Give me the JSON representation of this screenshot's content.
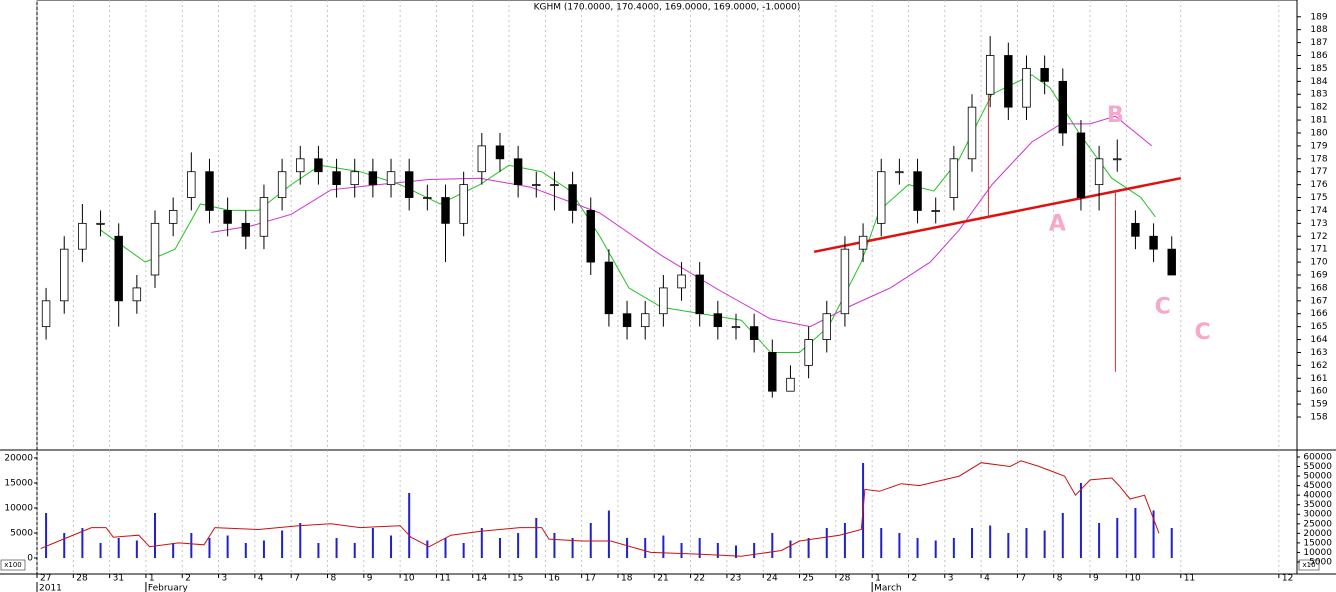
{
  "chart_data": [
    {
      "type": "candlestick",
      "title": "KGHM (170.0000, 170.4000, 169.0000, 169.0000, -1.0000)",
      "xlim": [
        0,
        34.7
      ],
      "ylim": [
        155.6,
        190.3
      ],
      "yticks": [
        158,
        159,
        160,
        161,
        162,
        163,
        164,
        165,
        166,
        167,
        168,
        169,
        170,
        171,
        172,
        173,
        174,
        175,
        176,
        177,
        178,
        179,
        180,
        181,
        182,
        183,
        184,
        185,
        186,
        187,
        188,
        189
      ],
      "up_color": "#ffffff",
      "down_color": "#000000",
      "x": [
        0.25,
        0.75,
        1.25,
        1.75,
        2.25,
        2.75,
        3.25,
        3.75,
        4.25,
        4.75,
        5.25,
        5.75,
        6.25,
        6.75,
        7.25,
        7.75,
        8.25,
        8.75,
        9.25,
        9.75,
        10.25,
        10.75,
        11.25,
        11.75,
        12.25,
        12.75,
        13.25,
        13.75,
        14.25,
        14.75,
        15.25,
        15.75,
        16.25,
        16.75,
        17.25,
        17.75,
        18.25,
        18.75,
        19.25,
        19.75,
        20.25,
        20.75,
        21.25,
        21.75,
        22.25,
        22.75,
        23.25,
        23.75,
        24.25,
        24.75,
        25.25,
        25.75,
        26.25,
        26.75,
        27.25,
        27.75,
        28.25,
        28.75,
        29.25,
        29.75,
        30.25,
        30.75,
        31.25
      ],
      "open": [
        165,
        167,
        171,
        173,
        172,
        167,
        169,
        173,
        175,
        177,
        174,
        173,
        172,
        175,
        177,
        178,
        177,
        176,
        177,
        176,
        177,
        175,
        175,
        173,
        177,
        179,
        178,
        176,
        176,
        176,
        174,
        170,
        166,
        165,
        166,
        168,
        169,
        166,
        165,
        165,
        163,
        160,
        162,
        164,
        166,
        171,
        173,
        177,
        177,
        174,
        175,
        178,
        183,
        186,
        182,
        185,
        184,
        180,
        176,
        178,
        173,
        172,
        171
      ],
      "high": [
        168,
        172,
        174.5,
        174,
        173,
        169,
        174,
        175,
        178.5,
        178,
        175,
        174,
        176,
        178,
        179,
        179,
        178,
        178,
        178,
        178,
        178,
        176,
        176,
        177,
        180,
        180,
        179,
        177,
        177,
        177,
        175,
        171,
        167,
        167,
        169,
        170,
        170,
        167,
        166,
        166,
        164,
        162,
        165,
        167,
        172,
        173,
        178,
        178,
        178,
        175,
        179,
        183,
        187.5,
        187,
        186,
        186,
        185,
        181,
        179,
        179.5,
        174,
        173,
        172
      ],
      "low": [
        164,
        166,
        170,
        172,
        165,
        166,
        168,
        172,
        174,
        173,
        172,
        171,
        171,
        174,
        176,
        176,
        175,
        175,
        175,
        175,
        174,
        174,
        170,
        172,
        176,
        177,
        175,
        175,
        174,
        173,
        169,
        165,
        164,
        164,
        165,
        167,
        165,
        164,
        164,
        163,
        159.5,
        160,
        161,
        163,
        165,
        170,
        172,
        176,
        173,
        173,
        174,
        177,
        182,
        181,
        181,
        183,
        179,
        174,
        174,
        177,
        171,
        170,
        169
      ],
      "close": [
        167,
        171,
        173,
        173,
        167,
        168,
        173,
        174,
        177,
        174,
        173,
        172,
        175,
        177,
        178,
        177,
        176,
        177,
        176,
        177,
        175,
        175,
        173,
        176,
        179,
        178,
        176,
        176,
        176,
        174,
        170,
        166,
        165,
        166,
        168,
        169,
        166,
        165,
        165,
        164,
        160,
        161,
        164,
        166,
        171,
        172,
        177,
        177,
        174,
        174,
        178,
        182,
        186,
        182,
        185,
        184,
        180,
        175,
        178,
        178,
        172,
        171,
        169
      ],
      "lines": [
        {
          "color": "#22c322",
          "width": 1,
          "x": [
            1.74,
            2.98,
            3.8,
            4.5,
            5.3,
            6.1,
            7.0,
            7.8,
            8.9,
            10.0,
            11.1,
            12.2,
            13.0,
            13.9,
            14.7,
            15.5,
            16.3,
            17.2,
            18.3,
            19.4,
            20.2,
            21.0,
            21.8,
            22.7,
            23.2,
            24.0,
            24.7,
            25.4,
            26.3,
            27.4,
            27.9,
            28.7,
            29.6,
            30.4,
            30.8
          ],
          "values": [
            172.5,
            170,
            171,
            174.5,
            174,
            174,
            176,
            177.5,
            177,
            176,
            174.5,
            176,
            177.5,
            177,
            175.5,
            172,
            168,
            166.5,
            166,
            165.5,
            163,
            163,
            165,
            170,
            174,
            176,
            175.5,
            178,
            183,
            184.5,
            183.5,
            180,
            176.5,
            175,
            173.5
          ]
        },
        {
          "color": "#d030d0",
          "width": 1,
          "x": [
            4.8,
            5.9,
            7.0,
            8.1,
            9.4,
            10.8,
            12.2,
            13.6,
            15.5,
            17.2,
            18.8,
            20.2,
            21.3,
            22.4,
            23.5,
            24.6,
            25.4,
            26.3,
            27.4,
            28.2,
            29.0,
            29.7,
            30.7
          ],
          "values": [
            172.3,
            172.8,
            173.7,
            175.6,
            176,
            176.4,
            176.5,
            175.8,
            173.8,
            170.5,
            167.8,
            165.6,
            165,
            166.6,
            168,
            170,
            172.5,
            176,
            179.3,
            180.7,
            180.7,
            181.3,
            179
          ]
        },
        {
          "color": "#e01010",
          "width": 2.5,
          "x": [
            21.4,
            31.5
          ],
          "values": [
            170.8,
            176.5
          ]
        },
        {
          "color": "#cc3333",
          "width": 1,
          "x": [
            26.2,
            26.2
          ],
          "values": [
            185.7,
            173.4
          ]
        },
        {
          "color": "#cc3333",
          "width": 1,
          "x": [
            29.7,
            29.7
          ],
          "values": [
            175.6,
            161.5
          ]
        }
      ],
      "annotation_color": "#f7a8c8",
      "annotations": [
        {
          "text": "A",
          "x": 28.1,
          "y": 172.9
        },
        {
          "text": "B",
          "x": 29.7,
          "y": 181.3
        },
        {
          "text": "C",
          "x": 31.0,
          "y": 166.5
        },
        {
          "text": "C",
          "x": 32.1,
          "y": 164.5
        }
      ]
    },
    {
      "type": "bar",
      "xlim": [
        0,
        34.7
      ],
      "ylim": [
        -2400,
        21200
      ],
      "y2lim": [
        800,
        62600
      ],
      "yticks": [
        0,
        5000,
        10000,
        15000,
        20000
      ],
      "y2ticks": [
        5000,
        10000,
        15000,
        20000,
        25000,
        30000,
        35000,
        40000,
        45000,
        50000,
        55000,
        60000
      ],
      "unit_label": "x100",
      "y2_unit_label": "x10",
      "grid": true,
      "xticks": [
        {
          "value": 0,
          "label": "27"
        },
        {
          "value": 1,
          "label": "28"
        },
        {
          "value": 2,
          "label": "31"
        },
        {
          "value": 3,
          "label": "1"
        },
        {
          "value": 4,
          "label": "2"
        },
        {
          "value": 5,
          "label": "3"
        },
        {
          "value": 6,
          "label": "4"
        },
        {
          "value": 7,
          "label": "7"
        },
        {
          "value": 8,
          "label": "8"
        },
        {
          "value": 9,
          "label": "9"
        },
        {
          "value": 10,
          "label": "10"
        },
        {
          "value": 11,
          "label": "11"
        },
        {
          "value": 12,
          "label": "14"
        },
        {
          "value": 13,
          "label": "15"
        },
        {
          "value": 14,
          "label": "16"
        },
        {
          "value": 15,
          "label": "17"
        },
        {
          "value": 16,
          "label": "18"
        },
        {
          "value": 17,
          "label": "21"
        },
        {
          "value": 18,
          "label": "22"
        },
        {
          "value": 19,
          "label": "23"
        },
        {
          "value": 20,
          "label": "24"
        },
        {
          "value": 21,
          "label": "25"
        },
        {
          "value": 22,
          "label": "28"
        },
        {
          "value": 23,
          "label": "1"
        },
        {
          "value": 24,
          "label": "2"
        },
        {
          "value": 25,
          "label": "3"
        },
        {
          "value": 26,
          "label": "4"
        },
        {
          "value": 27,
          "label": "7"
        },
        {
          "value": 28,
          "label": "8"
        },
        {
          "value": 29,
          "label": "9"
        },
        {
          "value": 30,
          "label": "10"
        },
        {
          "value": 31.5,
          "label": "11"
        },
        {
          "value": 34.2,
          "label": "12"
        }
      ],
      "month_labels": [
        {
          "value": 0,
          "label": "2011"
        },
        {
          "value": 3,
          "label": "February"
        },
        {
          "value": 23,
          "label": "March"
        }
      ],
      "series": [
        {
          "color": "#2020d0",
          "x": [
            0.25,
            0.75,
            1.25,
            1.75,
            2.25,
            2.75,
            3.25,
            3.75,
            4.25,
            4.75,
            5.25,
            5.75,
            6.25,
            6.75,
            7.25,
            7.75,
            8.25,
            8.75,
            9.25,
            9.75,
            10.25,
            10.75,
            11.25,
            11.75,
            12.25,
            12.75,
            13.25,
            13.75,
            14.25,
            14.75,
            15.25,
            15.75,
            16.25,
            16.75,
            17.25,
            17.75,
            18.25,
            18.75,
            19.25,
            19.75,
            20.25,
            20.75,
            21.25,
            21.75,
            22.25,
            22.75,
            23.25,
            23.75,
            24.25,
            24.75,
            25.25,
            25.75,
            26.25,
            26.75,
            27.25,
            27.75,
            28.25,
            28.75,
            29.25,
            29.75,
            30.25,
            30.75,
            31.25
          ],
          "values": [
            9000,
            5000,
            6000,
            3000,
            4000,
            3500,
            9000,
            3000,
            5000,
            4000,
            4500,
            3000,
            3500,
            5500,
            7000,
            3000,
            4000,
            3000,
            6000,
            4500,
            13000,
            3500,
            4000,
            3000,
            6000,
            4000,
            5000,
            8000,
            5000,
            4000,
            7000,
            9500,
            4000,
            4000,
            4500,
            3000,
            4000,
            3000,
            2500,
            3000,
            5000,
            3500,
            4000,
            6000,
            7000,
            19000,
            6000,
            5000,
            4000,
            3500,
            4000,
            6000,
            6500,
            5000,
            6000,
            5500,
            9000,
            15000,
            7000,
            8000,
            10000,
            9500,
            6000
          ]
        },
        {
          "color": "#cc1010",
          "axis": "y2",
          "x": [
            0.1,
            0.6,
            1.5,
            1.9,
            2.1,
            2.8,
            3.1,
            3.9,
            4.6,
            4.9,
            6.1,
            7.2,
            8.1,
            8.9,
            10.0,
            10.3,
            10.8,
            11.4,
            12.2,
            13.3,
            13.9,
            14.1,
            15.0,
            15.8,
            16.9,
            18.3,
            19.4,
            20.5,
            21.0,
            22.1,
            22.7,
            22.8,
            23.2,
            23.8,
            24.3,
            25.4,
            26.0,
            26.8,
            27.1,
            27.6,
            28.3,
            28.6,
            29.0,
            29.6,
            29.8,
            30.1,
            30.5,
            30.9
          ],
          "values": [
            12000,
            16000,
            23000,
            23000,
            18000,
            19000,
            13000,
            15000,
            14000,
            23000,
            22000,
            24000,
            25000,
            23000,
            24000,
            18000,
            13000,
            19000,
            21000,
            23000,
            23000,
            17000,
            16000,
            16000,
            10000,
            9000,
            8000,
            11000,
            16000,
            19000,
            22000,
            43000,
            42000,
            46000,
            45000,
            50000,
            57000,
            55000,
            58000,
            55000,
            50000,
            40000,
            48000,
            49000,
            45000,
            38000,
            40000,
            20000
          ]
        }
      ]
    }
  ]
}
